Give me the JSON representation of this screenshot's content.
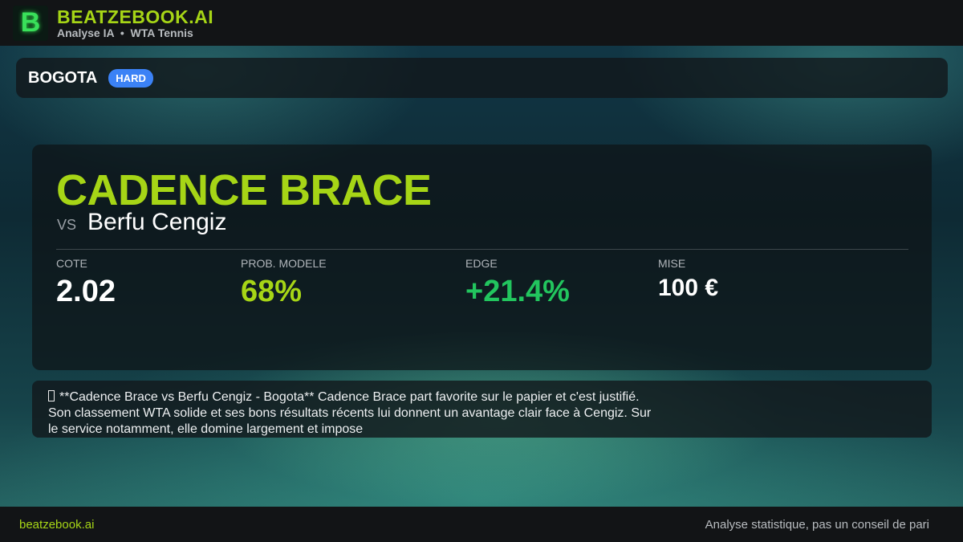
{
  "header": {
    "logo_letter": "B",
    "title": "BEATZEBOOK.AI",
    "subtitle": "Analyse IA  •  WTA Tennis"
  },
  "tournament": {
    "name": "BOGOTA",
    "surface": "HARD",
    "surface_color": "#3b82f6"
  },
  "match": {
    "player": "CADENCE BRACE",
    "vs": "VS",
    "opponent": "Berfu Cengiz"
  },
  "stats": [
    {
      "label": "COTE",
      "value": "2.02",
      "color": "#ffffff"
    },
    {
      "label": "PROB. MODELE",
      "value": "68%",
      "color": "#a6d516"
    },
    {
      "label": "EDGE",
      "value": "+21.4%",
      "color": "#22c55e"
    },
    {
      "label": "MISE",
      "value": "100 €",
      "color": "#ffffff"
    }
  ],
  "analysis": {
    "text": "**Cadence Brace vs Berfu Cengiz - Bogota** Cadence Brace part favorite sur le papier et c'est justifié. Son classement WTA solide et ses bons résultats récents lui donnent un avantage clair face à Cengiz. Sur le service notamment, elle domine largement et impose"
  },
  "footer": {
    "site": "beatzebook.ai",
    "disclaimer": "Analyse statistique, pas un conseil de pari"
  }
}
